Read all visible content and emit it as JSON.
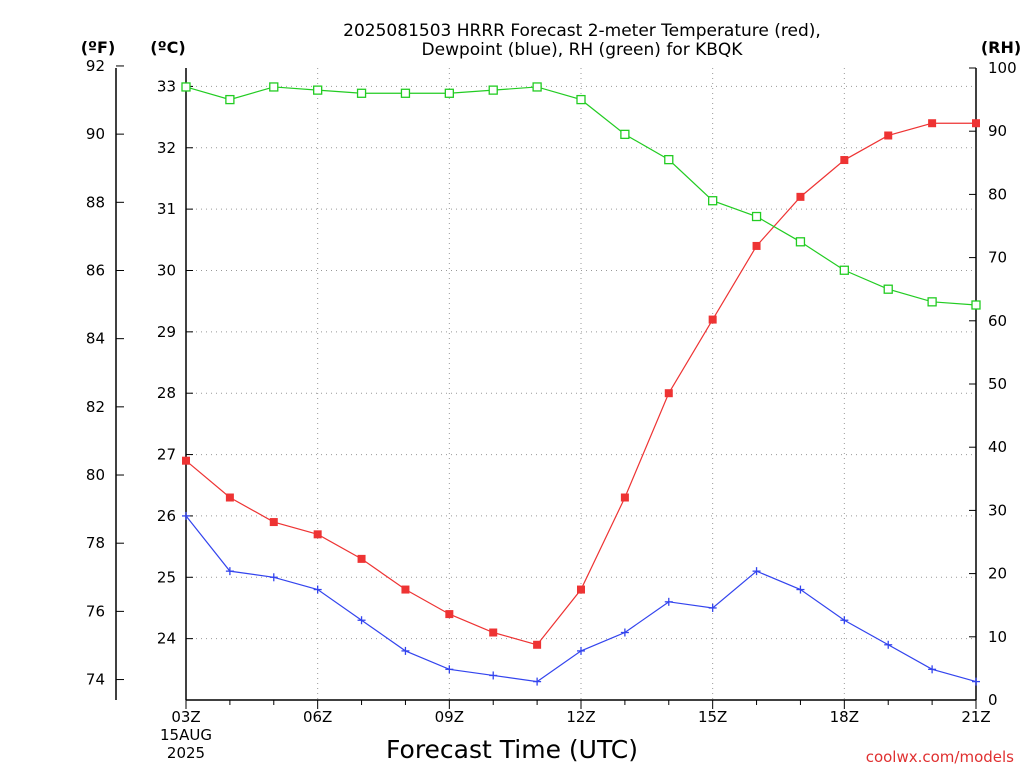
{
  "chart_data": {
    "type": "line",
    "title_line1": "2025081503 HRRR Forecast 2-meter Temperature (red),",
    "title_line2": "Dewpoint (blue), RH (green) for KBQK",
    "xlabel": "Forecast Time (UTC)",
    "credit": "coolwx.com/models",
    "unit_f": "(ºF)",
    "unit_c": "(ºC)",
    "unit_rh": "(RH)",
    "x_start_line1": "03Z",
    "x_start_line2": "15AUG",
    "x_start_line3": "2025",
    "x_tick_labels": [
      "06Z",
      "09Z",
      "12Z",
      "15Z",
      "18Z",
      "21Z"
    ],
    "x_hours": [
      3,
      4,
      5,
      6,
      7,
      8,
      9,
      10,
      11,
      12,
      13,
      14,
      15,
      16,
      17,
      18,
      19,
      20,
      21
    ],
    "xlim": [
      3,
      21
    ],
    "ylim_c": [
      23,
      33.3
    ],
    "y_ticks_c": [
      "24",
      "25",
      "26",
      "27",
      "28",
      "29",
      "30",
      "31",
      "32",
      "33"
    ],
    "y_ticks_f": [
      "74",
      "76",
      "78",
      "80",
      "82",
      "84",
      "86",
      "88",
      "90",
      "92"
    ],
    "y_ticks_rh": [
      "0",
      "10",
      "20",
      "30",
      "40",
      "50",
      "60",
      "70",
      "80",
      "90",
      "100"
    ],
    "grid": true,
    "series": [
      {
        "name": "Temperature",
        "axis": "c",
        "color": "#ee3333",
        "marker": "filled-square",
        "values": [
          26.9,
          26.3,
          25.9,
          25.7,
          25.3,
          24.8,
          24.4,
          24.1,
          23.9,
          24.8,
          26.3,
          28.0,
          29.2,
          30.4,
          31.2,
          31.8,
          32.2,
          32.4,
          32.4
        ]
      },
      {
        "name": "Dewpoint",
        "axis": "c",
        "color": "#3344ee",
        "marker": "plus",
        "values": [
          26.0,
          25.1,
          25.0,
          24.8,
          24.3,
          23.8,
          23.5,
          23.4,
          23.3,
          23.8,
          24.1,
          24.6,
          24.5,
          25.1,
          24.8,
          24.3,
          23.9,
          23.5,
          23.3
        ]
      },
      {
        "name": "RH",
        "axis": "rh",
        "color": "#22cc22",
        "marker": "open-square",
        "values": [
          97,
          95,
          97,
          96.5,
          96,
          96,
          96,
          96.5,
          97,
          95,
          89.5,
          85.5,
          79,
          76.5,
          72.5,
          68,
          65,
          63,
          62.5
        ]
      }
    ]
  }
}
